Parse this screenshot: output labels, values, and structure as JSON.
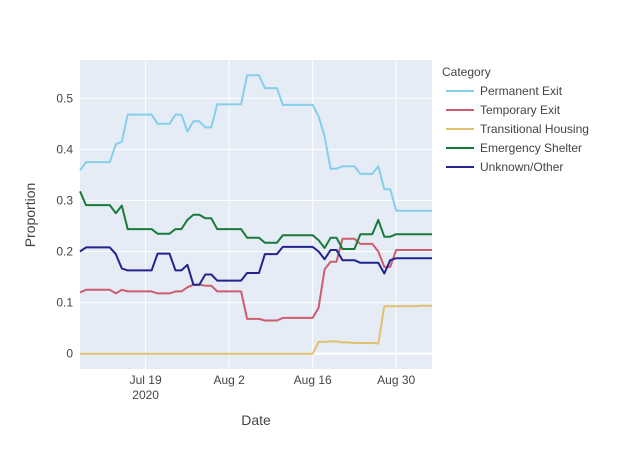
{
  "chart_data": {
    "type": "line",
    "xlabel": "Date",
    "ylabel": "Proportion",
    "legend": {
      "title": "Category",
      "placement": "right"
    },
    "x_ticks": [
      {
        "date": "2020-07-19",
        "label": "Jul 19",
        "sublabel": "2020"
      },
      {
        "date": "2020-08-02",
        "label": "Aug 2",
        "sublabel": ""
      },
      {
        "date": "2020-08-16",
        "label": "Aug 16",
        "sublabel": ""
      },
      {
        "date": "2020-08-30",
        "label": "Aug 30",
        "sublabel": ""
      }
    ],
    "xlim": [
      "2020-07-08",
      "2020-09-05"
    ],
    "ylim": [
      -0.03,
      0.575
    ],
    "y_ticks": [
      0,
      0.1,
      0.2,
      0.3,
      0.4,
      0.5
    ],
    "y_tick_labels": [
      "0",
      "0.1",
      "0.2",
      "0.3",
      "0.4",
      "0.5"
    ],
    "grid": true,
    "x": [
      "2020-07-08",
      "2020-07-09",
      "2020-07-10",
      "2020-07-11",
      "2020-07-12",
      "2020-07-13",
      "2020-07-14",
      "2020-07-15",
      "2020-07-16",
      "2020-07-17",
      "2020-07-18",
      "2020-07-19",
      "2020-07-20",
      "2020-07-21",
      "2020-07-22",
      "2020-07-23",
      "2020-07-24",
      "2020-07-25",
      "2020-07-26",
      "2020-07-27",
      "2020-07-28",
      "2020-07-29",
      "2020-07-30",
      "2020-07-31",
      "2020-08-01",
      "2020-08-02",
      "2020-08-03",
      "2020-08-04",
      "2020-08-05",
      "2020-08-06",
      "2020-08-07",
      "2020-08-08",
      "2020-08-09",
      "2020-08-10",
      "2020-08-11",
      "2020-08-12",
      "2020-08-13",
      "2020-08-14",
      "2020-08-15",
      "2020-08-16",
      "2020-08-17",
      "2020-08-18",
      "2020-08-19",
      "2020-08-20",
      "2020-08-21",
      "2020-08-22",
      "2020-08-23",
      "2020-08-24",
      "2020-08-25",
      "2020-08-26",
      "2020-08-27",
      "2020-08-28",
      "2020-08-29",
      "2020-08-30",
      "2020-08-31",
      "2020-09-01",
      "2020-09-02",
      "2020-09-03",
      "2020-09-04",
      "2020-09-05"
    ],
    "series": [
      {
        "name": "Permanent Exit",
        "color": "#87ceeb",
        "values": [
          0.359,
          0.375,
          0.375,
          0.375,
          0.375,
          0.375,
          0.41,
          0.415,
          0.468,
          0.468,
          0.468,
          0.468,
          0.468,
          0.45,
          0.45,
          0.45,
          0.468,
          0.468,
          0.435,
          0.455,
          0.455,
          0.443,
          0.443,
          0.488,
          0.488,
          0.488,
          0.488,
          0.488,
          0.545,
          0.545,
          0.545,
          0.52,
          0.52,
          0.52,
          0.487,
          0.487,
          0.487,
          0.487,
          0.487,
          0.487,
          0.465,
          0.425,
          0.362,
          0.362,
          0.367,
          0.367,
          0.367,
          0.352,
          0.352,
          0.352,
          0.367,
          0.322,
          0.322,
          0.28,
          0.28,
          0.28,
          0.28,
          0.28,
          0.28,
          0.28
        ]
      },
      {
        "name": "Temporary Exit",
        "color": "#cd5c6f",
        "values": [
          0.12,
          0.125,
          0.125,
          0.125,
          0.125,
          0.125,
          0.118,
          0.125,
          0.122,
          0.122,
          0.122,
          0.122,
          0.122,
          0.118,
          0.118,
          0.118,
          0.122,
          0.122,
          0.13,
          0.135,
          0.135,
          0.133,
          0.133,
          0.122,
          0.122,
          0.122,
          0.122,
          0.122,
          0.068,
          0.068,
          0.068,
          0.065,
          0.065,
          0.065,
          0.07,
          0.07,
          0.07,
          0.07,
          0.07,
          0.07,
          0.09,
          0.165,
          0.18,
          0.18,
          0.225,
          0.225,
          0.225,
          0.215,
          0.215,
          0.215,
          0.2,
          0.17,
          0.17,
          0.203,
          0.203,
          0.203,
          0.203,
          0.203,
          0.203,
          0.203
        ]
      },
      {
        "name": "Transitional Housing",
        "color": "#e1c16e",
        "values": [
          0,
          0,
          0,
          0,
          0,
          0,
          0,
          0,
          0,
          0,
          0,
          0,
          0,
          0,
          0,
          0,
          0,
          0,
          0,
          0,
          0,
          0,
          0,
          0,
          0,
          0,
          0,
          0,
          0,
          0,
          0,
          0,
          0,
          0,
          0,
          0,
          0,
          0,
          0,
          0,
          0.023,
          0.023,
          0.024,
          0.024,
          0.022,
          0.022,
          0.021,
          0.021,
          0.021,
          0.021,
          0.02,
          0.093,
          0.093,
          0.093,
          0.093,
          0.093,
          0.093,
          0.094,
          0.094,
          0.094
        ]
      },
      {
        "name": "Emergency Shelter",
        "color": "#1a7a3a",
        "values": [
          0.318,
          0.291,
          0.291,
          0.291,
          0.291,
          0.291,
          0.275,
          0.29,
          0.244,
          0.244,
          0.244,
          0.244,
          0.244,
          0.235,
          0.235,
          0.235,
          0.244,
          0.244,
          0.262,
          0.272,
          0.272,
          0.265,
          0.265,
          0.244,
          0.244,
          0.244,
          0.244,
          0.244,
          0.227,
          0.227,
          0.227,
          0.217,
          0.217,
          0.217,
          0.232,
          0.232,
          0.232,
          0.232,
          0.232,
          0.232,
          0.222,
          0.207,
          0.227,
          0.227,
          0.205,
          0.205,
          0.205,
          0.234,
          0.234,
          0.234,
          0.262,
          0.229,
          0.229,
          0.234,
          0.234,
          0.234,
          0.234,
          0.234,
          0.234,
          0.234
        ]
      },
      {
        "name": "Unknown/Other",
        "color": "#23238e",
        "values": [
          0.2,
          0.208,
          0.208,
          0.208,
          0.208,
          0.208,
          0.195,
          0.167,
          0.163,
          0.163,
          0.163,
          0.163,
          0.163,
          0.196,
          0.196,
          0.196,
          0.163,
          0.163,
          0.174,
          0.135,
          0.135,
          0.155,
          0.155,
          0.143,
          0.143,
          0.143,
          0.143,
          0.143,
          0.158,
          0.158,
          0.158,
          0.195,
          0.195,
          0.195,
          0.209,
          0.209,
          0.209,
          0.209,
          0.209,
          0.209,
          0.2,
          0.185,
          0.203,
          0.203,
          0.183,
          0.183,
          0.183,
          0.178,
          0.178,
          0.178,
          0.178,
          0.157,
          0.183,
          0.187,
          0.187,
          0.187,
          0.187,
          0.187,
          0.187,
          0.187
        ]
      }
    ]
  }
}
